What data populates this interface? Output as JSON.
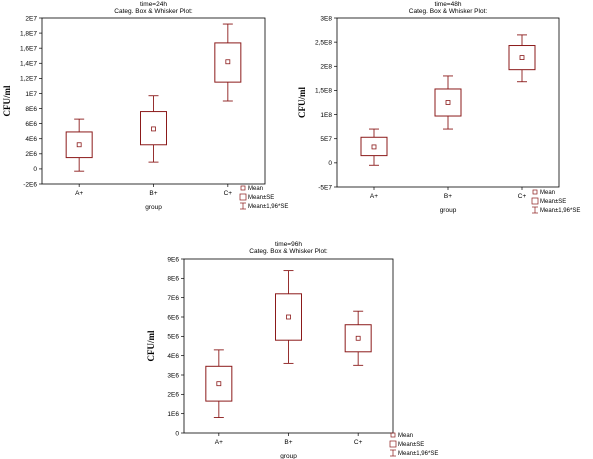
{
  "chart_data": [
    {
      "type": "box",
      "title": "time=24h",
      "subtitle": "Categ. Box & Whisker Plot:",
      "xlabel": "group",
      "ylabel": "CFU/ml",
      "categories": [
        "A+",
        "B+",
        "C+"
      ],
      "yticks": [
        -2000000,
        0,
        2000000,
        4000000,
        6000000,
        8000000,
        10000000,
        12000000,
        14000000,
        16000000,
        18000000,
        20000000
      ],
      "ytick_labels": [
        "-2E6",
        "0",
        "2E6",
        "4E6",
        "6E6",
        "8E6",
        "1E7",
        "1,2E7",
        "1,4E7",
        "1,6E7",
        "1,8E7",
        "2E7"
      ],
      "ylim": [
        -2000000,
        20000000
      ],
      "grid": false,
      "legend_position": "bottom-right",
      "legend": [
        "Mean",
        "Mean±SE",
        "Mean±1,96*SE"
      ],
      "series": [
        {
          "category": "A+",
          "mean": 3200000,
          "se_low": 1500000,
          "se_high": 4900000,
          "ci_low": -300000,
          "ci_high": 6600000
        },
        {
          "category": "B+",
          "mean": 5300000,
          "se_low": 3200000,
          "se_high": 7600000,
          "ci_low": 900000,
          "ci_high": 9700000
        },
        {
          "category": "C+",
          "mean": 14200000,
          "se_low": 11500000,
          "se_high": 16700000,
          "ci_low": 9000000,
          "ci_high": 19200000
        }
      ]
    },
    {
      "type": "box",
      "title": "time=48h",
      "subtitle": "Categ. Box & Whisker Plot:",
      "xlabel": "group",
      "ylabel": "CFU/ml",
      "categories": [
        "A+",
        "B+",
        "C+"
      ],
      "yticks": [
        -50000000,
        0,
        50000000,
        100000000,
        150000000,
        200000000,
        250000000,
        300000000
      ],
      "ytick_labels": [
        "-5E7",
        "0",
        "5E7",
        "1E8",
        "1,5E8",
        "2E8",
        "2,5E8",
        "3E8"
      ],
      "ylim": [
        -50000000,
        300000000
      ],
      "grid": false,
      "legend_position": "bottom-right",
      "legend": [
        "Mean",
        "Mean±SE",
        "Mean±1,96*SE"
      ],
      "series": [
        {
          "category": "A+",
          "mean": 33000000,
          "se_low": 15000000,
          "se_high": 53000000,
          "ci_low": -5000000,
          "ci_high": 70000000
        },
        {
          "category": "B+",
          "mean": 125000000,
          "se_low": 97000000,
          "se_high": 153000000,
          "ci_low": 70000000,
          "ci_high": 180000000
        },
        {
          "category": "C+",
          "mean": 218000000,
          "se_low": 193000000,
          "se_high": 243000000,
          "ci_low": 168000000,
          "ci_high": 265000000
        }
      ]
    },
    {
      "type": "box",
      "title": "time=96h",
      "subtitle": "Categ. Box & Whisker Plot:",
      "xlabel": "group",
      "ylabel": "CFU/ml",
      "categories": [
        "A+",
        "B+",
        "C+"
      ],
      "yticks": [
        0,
        1000000,
        2000000,
        3000000,
        4000000,
        5000000,
        6000000,
        7000000,
        8000000,
        9000000
      ],
      "ytick_labels": [
        "0",
        "1E6",
        "2E6",
        "3E6",
        "4E6",
        "5E6",
        "6E6",
        "7E6",
        "8E6",
        "9E6"
      ],
      "ylim": [
        0,
        9000000
      ],
      "grid": false,
      "legend_position": "bottom-right",
      "legend": [
        "Mean",
        "Mean±SE",
        "Mean±1,96*SE"
      ],
      "series": [
        {
          "category": "A+",
          "mean": 2550000,
          "se_low": 1650000,
          "se_high": 3450000,
          "ci_low": 800000,
          "ci_high": 4300000
        },
        {
          "category": "B+",
          "mean": 6000000,
          "se_low": 4800000,
          "se_high": 7200000,
          "ci_low": 3600000,
          "ci_high": 8400000
        },
        {
          "category": "C+",
          "mean": 4900000,
          "se_low": 4200000,
          "se_high": 5600000,
          "ci_low": 3500000,
          "ci_high": 6300000
        }
      ]
    }
  ],
  "colors": {
    "box": "#8b1a1a",
    "axis": "#000000"
  }
}
